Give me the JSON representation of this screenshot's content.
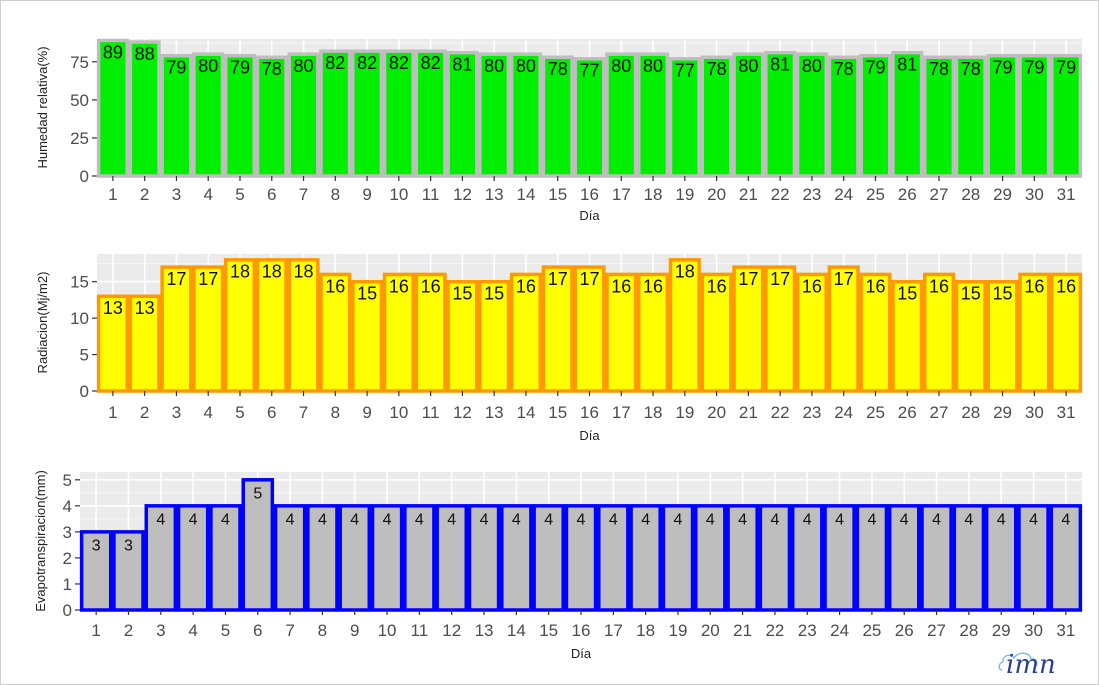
{
  "chart_data": [
    {
      "type": "bar",
      "title": "",
      "xlabel": "Día",
      "ylabel": "Humedad relativa(%)",
      "categories": [
        "1",
        "2",
        "3",
        "4",
        "5",
        "6",
        "7",
        "8",
        "9",
        "10",
        "11",
        "12",
        "13",
        "14",
        "15",
        "16",
        "17",
        "18",
        "19",
        "20",
        "21",
        "22",
        "23",
        "24",
        "25",
        "26",
        "27",
        "28",
        "29",
        "30",
        "31"
      ],
      "values": [
        89,
        88,
        79,
        80,
        79,
        78,
        80,
        82,
        82,
        82,
        82,
        81,
        80,
        80,
        78,
        77,
        80,
        80,
        77,
        78,
        80,
        81,
        80,
        78,
        79,
        81,
        78,
        78,
        79,
        79,
        79
      ],
      "ylim": [
        0,
        90
      ],
      "yticks": [
        0,
        25,
        50,
        75
      ],
      "fill_color": "#00ee00",
      "outline_color": "#bebebe",
      "grid": true
    },
    {
      "type": "bar",
      "title": "",
      "xlabel": "Día",
      "ylabel": "Radiacion(Mj/m2)",
      "categories": [
        "1",
        "2",
        "3",
        "4",
        "5",
        "6",
        "7",
        "8",
        "9",
        "10",
        "11",
        "12",
        "13",
        "14",
        "15",
        "16",
        "17",
        "18",
        "19",
        "20",
        "21",
        "22",
        "23",
        "24",
        "25",
        "26",
        "27",
        "28",
        "29",
        "30",
        "31"
      ],
      "values": [
        13,
        13,
        17,
        17,
        18,
        18,
        18,
        16,
        15,
        16,
        16,
        15,
        15,
        16,
        17,
        17,
        16,
        16,
        18,
        16,
        17,
        17,
        16,
        17,
        16,
        15,
        16,
        15,
        15,
        16,
        16
      ],
      "ylim": [
        0,
        18.8
      ],
      "yticks": [
        0,
        5,
        10,
        15
      ],
      "fill_color": "#ffff00",
      "outline_color": "#ff9900",
      "grid": true
    },
    {
      "type": "bar",
      "title": "",
      "xlabel": "Día",
      "ylabel": "Evapotranspiracion(mm)",
      "categories": [
        "1",
        "2",
        "3",
        "4",
        "5",
        "6",
        "7",
        "8",
        "9",
        "10",
        "11",
        "12",
        "13",
        "14",
        "15",
        "16",
        "17",
        "18",
        "19",
        "20",
        "21",
        "22",
        "23",
        "24",
        "25",
        "26",
        "27",
        "28",
        "29",
        "30",
        "31"
      ],
      "values": [
        3,
        3,
        4,
        4,
        4,
        5,
        4,
        4,
        4,
        4,
        4,
        4,
        4,
        4,
        4,
        4,
        4,
        4,
        4,
        4,
        4,
        4,
        4,
        4,
        4,
        4,
        4,
        4,
        4,
        4,
        4
      ],
      "ylim": [
        0,
        5.3
      ],
      "yticks": [
        0,
        1,
        2,
        3,
        4,
        5
      ],
      "fill_color": "#bebebe",
      "outline_color": "#0000ff",
      "grid": true
    }
  ],
  "logo": {
    "text": "imn",
    "color": "#2a3f8f"
  }
}
